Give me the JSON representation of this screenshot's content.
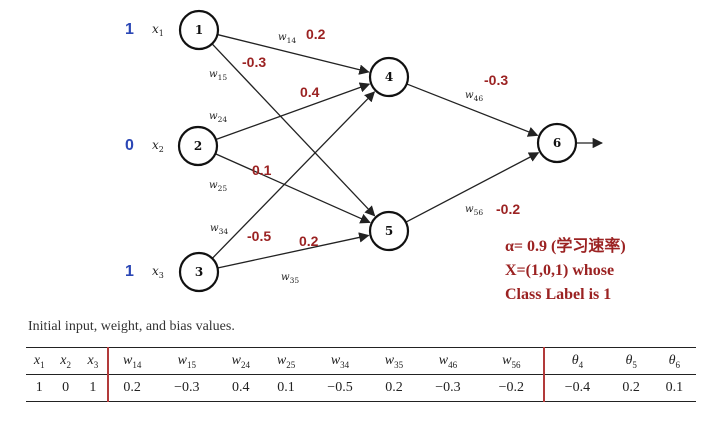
{
  "inputs": [
    {
      "node": "1",
      "value": "1",
      "label": "x",
      "sub": "1"
    },
    {
      "node": "2",
      "value": "0",
      "label": "x",
      "sub": "2"
    },
    {
      "node": "3",
      "value": "1",
      "label": "x",
      "sub": "3"
    }
  ],
  "nodes": [
    "1",
    "2",
    "3",
    "4",
    "5",
    "6"
  ],
  "edges": [
    {
      "from": "1",
      "to": "4",
      "sym": "w",
      "sub": "14",
      "value": "0.2"
    },
    {
      "from": "1",
      "to": "5",
      "sym": "w",
      "sub": "15",
      "value": "-0.3"
    },
    {
      "from": "2",
      "to": "4",
      "sym": "w",
      "sub": "24",
      "value": "0.4"
    },
    {
      "from": "2",
      "to": "5",
      "sym": "w",
      "sub": "25",
      "value": "0.1"
    },
    {
      "from": "3",
      "to": "4",
      "sym": "w",
      "sub": "34",
      "value": "-0.5"
    },
    {
      "from": "3",
      "to": "5",
      "sym": "w",
      "sub": "35",
      "value": "0.2"
    },
    {
      "from": "4",
      "to": "6",
      "sym": "w",
      "sub": "46",
      "value": "-0.3"
    },
    {
      "from": "5",
      "to": "6",
      "sym": "w",
      "sub": "56",
      "value": "-0.2"
    }
  ],
  "annotation": {
    "learning_rate": "α= 0.9 (学习速率)",
    "sample": "X=(1,0,1) whose",
    "class_label": "Class Label is 1"
  },
  "caption": "Initial input, weight, and bias values.",
  "table": {
    "headers": [
      {
        "sym": "x",
        "sub": "1"
      },
      {
        "sym": "x",
        "sub": "2"
      },
      {
        "sym": "x",
        "sub": "3"
      },
      {
        "sym": "w",
        "sub": "14"
      },
      {
        "sym": "w",
        "sub": "15"
      },
      {
        "sym": "w",
        "sub": "24"
      },
      {
        "sym": "w",
        "sub": "25"
      },
      {
        "sym": "w",
        "sub": "34"
      },
      {
        "sym": "w",
        "sub": "35"
      },
      {
        "sym": "w",
        "sub": "46"
      },
      {
        "sym": "w",
        "sub": "56"
      },
      {
        "sym": "θ",
        "sub": "4"
      },
      {
        "sym": "θ",
        "sub": "5"
      },
      {
        "sym": "θ",
        "sub": "6"
      }
    ],
    "values": [
      "1",
      "0",
      "1",
      "0.2",
      "−0.3",
      "0.4",
      "0.1",
      "−0.5",
      "0.2",
      "−0.3",
      "−0.2",
      "−0.4",
      "0.2",
      "0.1"
    ]
  },
  "colors": {
    "weight": "#9b2222",
    "input": "#2b47b5",
    "separator": "#b23a3a"
  }
}
